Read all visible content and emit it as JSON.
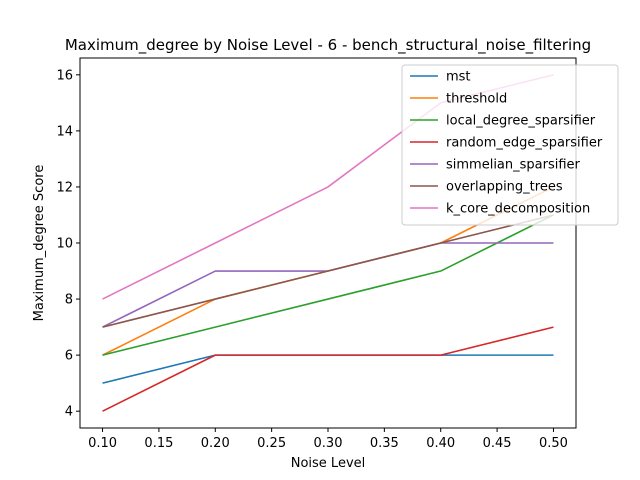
{
  "chart_data": {
    "type": "line",
    "title": "Maximum_degree by Noise Level - 6 - bench_structural_noise_filtering",
    "xlabel": "Noise Level",
    "ylabel": "Maximum_degree Score",
    "x": [
      0.1,
      0.2,
      0.3,
      0.4,
      0.5
    ],
    "xlim": [
      0.08,
      0.52
    ],
    "ylim": [
      3.4,
      16.6
    ],
    "xticks": [
      "0.10",
      "0.15",
      "0.20",
      "0.25",
      "0.30",
      "0.35",
      "0.40",
      "0.45",
      "0.50"
    ],
    "yticks": [
      "4",
      "6",
      "8",
      "10",
      "12",
      "14",
      "16"
    ],
    "grid": false,
    "legend_position": "upper-right",
    "series": [
      {
        "name": "mst",
        "color": "#1f77b4",
        "values": [
          5,
          6,
          6,
          6,
          6
        ]
      },
      {
        "name": "threshold",
        "color": "#ff7f0e",
        "values": [
          6,
          8,
          9,
          10,
          12
        ]
      },
      {
        "name": "local_degree_sparsifier",
        "color": "#2ca02c",
        "values": [
          6,
          7,
          8,
          9,
          11
        ]
      },
      {
        "name": "random_edge_sparsifier",
        "color": "#d62728",
        "values": [
          4,
          6,
          6,
          6,
          7
        ]
      },
      {
        "name": "simmelian_sparsifier",
        "color": "#9467bd",
        "values": [
          7,
          9,
          9,
          10,
          10
        ]
      },
      {
        "name": "overlapping_trees",
        "color": "#8c564b",
        "values": [
          7,
          8,
          9,
          10,
          11
        ]
      },
      {
        "name": "k_core_decomposition",
        "color": "#e377c2",
        "values": [
          8,
          10,
          12,
          15,
          16
        ]
      }
    ]
  }
}
